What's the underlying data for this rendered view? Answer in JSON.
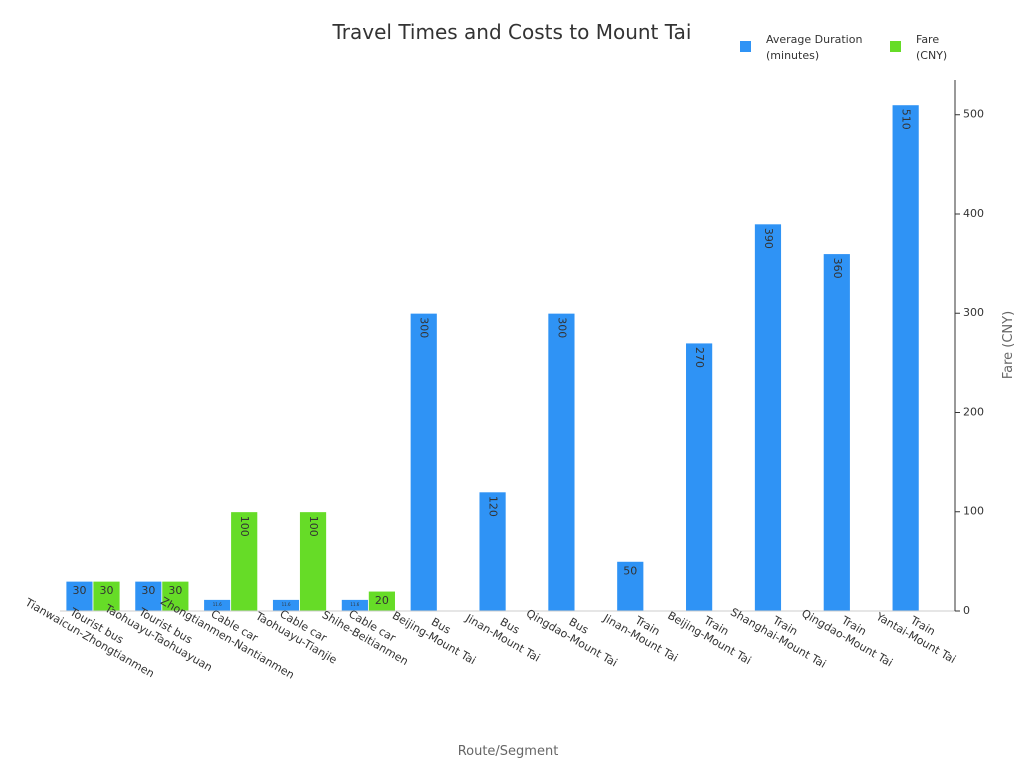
{
  "colors": {
    "duration": "#2f93f5",
    "fare": "#66dc27",
    "axis": "#cccccc",
    "text": "#333333",
    "axis_label": "#666666"
  },
  "chart_data": {
    "type": "bar",
    "title": "Travel Times and Costs to Mount Tai",
    "xlabel": "Route/Segment",
    "ylabel": "Fare (CNY)",
    "ylim": [
      0,
      535
    ],
    "yticks": [
      0,
      100,
      200,
      300,
      400,
      500
    ],
    "legend_position": "top-right",
    "categories": [
      "Tourist bus\nTianwaicun-Zhongtianmen",
      "Tourist bus\nTaohuayu-Taohuayuan",
      "Cable car\nZhongtianmen-Nantianmen",
      "Cable car\nTaohuayu-Tianjie",
      "Cable car\nShihe-Beitianmen",
      "Bus\nBeijing-Mount Tai",
      "Bus\nJinan-Mount Tai",
      "Bus\nQingdao-Mount Tai",
      "Train\nJinan-Mount Tai",
      "Train\nBeijing-Mount Tai",
      "Train\nShanghai-Mount Tai",
      "Train\nQingdao-Mount Tai",
      "Train\nYantai-Mount Tai"
    ],
    "series": [
      {
        "name": "Average Duration\n(minutes)",
        "color": "#2f93f5",
        "values": [
          30,
          30,
          11.6,
          11.6,
          11.6,
          300,
          120,
          300,
          50,
          270,
          390,
          360,
          510
        ],
        "labels": [
          "30",
          "30",
          "11.6",
          "11.6",
          "11.6",
          "300",
          "120",
          "300",
          "50",
          "270",
          "390",
          "360",
          "510"
        ]
      },
      {
        "name": "Fare\n(CNY)",
        "color": "#66dc27",
        "values": [
          30,
          30,
          100,
          100,
          20,
          null,
          null,
          null,
          null,
          null,
          null,
          null,
          null
        ],
        "labels": [
          "30",
          "30",
          "100",
          "100",
          "20",
          "",
          "",
          "",
          "",
          "",
          "",
          "",
          ""
        ]
      }
    ]
  }
}
